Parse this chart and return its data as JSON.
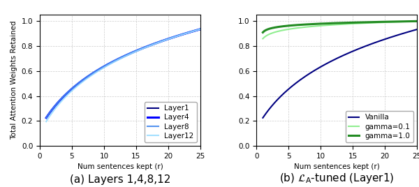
{
  "fig_width": 6.0,
  "fig_height": 2.68,
  "dpi": 100,
  "xlim": [
    0,
    25
  ],
  "ylim": [
    0.0,
    1.05
  ],
  "yticks": [
    0.0,
    0.2,
    0.4,
    0.6,
    0.8,
    1.0
  ],
  "xticks": [
    0,
    5,
    10,
    15,
    20,
    25
  ],
  "xlabel": "Num sentences kept (r)",
  "ylabel": "Total Attention Weights Retained",
  "subplot_a": {
    "lines": [
      {
        "label": "Layer1",
        "color": "#000080",
        "linewidth": 1.5,
        "alpha": 1.0,
        "v1": 0.225,
        "vmax": 0.934,
        "k": 0.18
      },
      {
        "label": "Layer4",
        "color": "#0000FF",
        "linewidth": 2.2,
        "alpha": 1.0,
        "v1": 0.225,
        "vmax": 0.936,
        "k": 0.185
      },
      {
        "label": "Layer8",
        "color": "#4488EE",
        "linewidth": 1.5,
        "alpha": 0.9,
        "v1": 0.225,
        "vmax": 0.938,
        "k": 0.19
      },
      {
        "label": "Layer12",
        "color": "#99DDFF",
        "linewidth": 1.5,
        "alpha": 0.9,
        "v1": 0.195,
        "vmax": 0.935,
        "k": 0.2
      }
    ]
  },
  "subplot_b": {
    "lines": [
      {
        "label": "Vanilla",
        "color": "#000080",
        "linewidth": 1.5,
        "alpha": 1.0,
        "v1": 0.225,
        "vmax": 0.934,
        "k": 0.18
      },
      {
        "label": "gamma=0.1",
        "color": "#90EE90",
        "linewidth": 1.5,
        "alpha": 1.0,
        "v1": 0.86,
        "vmax": 1.0,
        "k": 1.5
      },
      {
        "label": "gamma=1.0",
        "color": "#228B22",
        "linewidth": 2.2,
        "alpha": 1.0,
        "v1": 0.91,
        "vmax": 1.0,
        "k": 3.0
      }
    ]
  },
  "legend_fontsize": 7.5,
  "axis_fontsize": 7.5,
  "tick_fontsize": 7.5,
  "grid_color": "#cccccc",
  "grid_linestyle": "--",
  "grid_linewidth": 0.5,
  "caption_a": "(a) Layers 1,4,8,12",
  "caption_b_pre": "(b) ",
  "caption_b_post": "-tuned (Layer1)",
  "caption_fontsize": 11
}
